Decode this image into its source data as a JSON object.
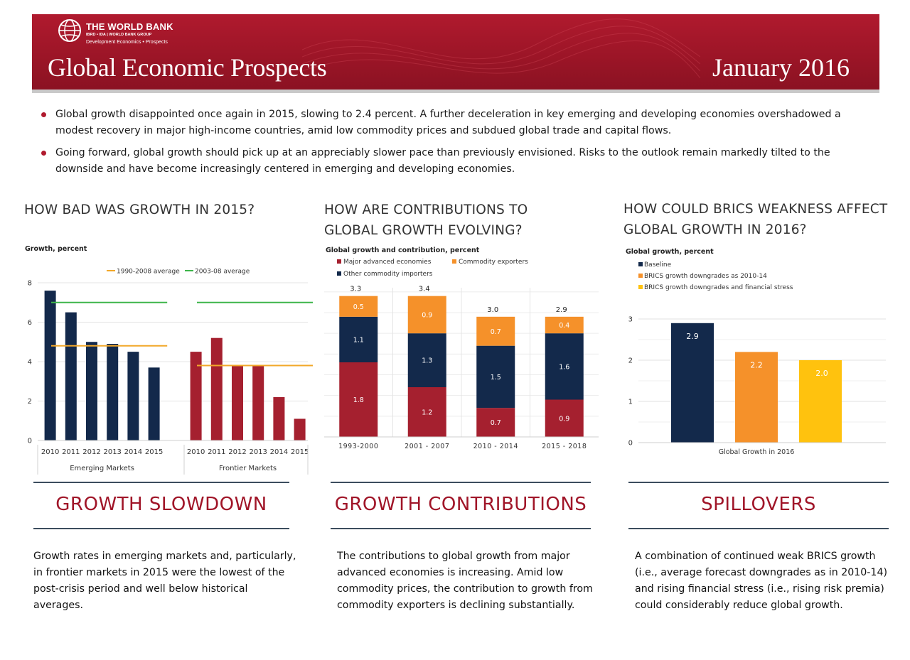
{
  "header": {
    "org_name": "THE WORLD BANK",
    "org_sub": "IBRD • IDA | WORLD BANK GROUP",
    "org_dept": "Development Economics • Prospects",
    "title": "Global Economic Prospects",
    "date": "January 2016"
  },
  "bullets": [
    "Global growth disappointed once again in 2015, slowing to 2.4 percent. A further deceleration in key emerging and developing economies overshadowed a modest recovery in major high-income countries, amid low commodity prices and subdued global trade and capital flows.",
    "Going forward, global growth should pick up at an appreciably slower pace than previously envisioned. Risks to the outlook remain markedly tilted to the downside and have become increasingly centered in emerging and developing economies."
  ],
  "sections": [
    {
      "question": "HOW BAD WAS GROWTH IN 2015?",
      "title": "GROWTH SLOWDOWN",
      "body": "Growth rates in emerging markets and, particularly, in frontier markets in 2015 were the lowest of the post-crisis period and well below historical averages."
    },
    {
      "question": "HOW ARE CONTRIBUTIONS TO GLOBAL GROWTH EVOLVING?",
      "title": "GROWTH CONTRIBUTIONS",
      "body": "The contributions to global growth from major advanced economies is increasing. Amid low commodity prices, the contribution to growth from commodity exporters is declining substantially."
    },
    {
      "question": "HOW COULD BRICS WEAKNESS AFFECT GLOBAL GROWTH IN 2016?",
      "title": "SPILLOVERS",
      "body": "A combination of continued weak BRICS growth (i.e., average forecast downgrades as in 2010-14) and rising financial stress (i.e., rising risk premia) could considerably reduce global growth."
    }
  ],
  "colors": {
    "brand_red": "#b01a2e",
    "navy": "#13294b",
    "crimson": "#a5202f",
    "orange": "#f5912a",
    "gold": "#ffc20e",
    "avg_1990": "#f2a82a",
    "avg_2003": "#3db54a"
  },
  "chart_data": [
    {
      "type": "bar",
      "ylabel": "Growth, percent",
      "ylim": [
        0,
        8
      ],
      "yticks": [
        0,
        2,
        4,
        6,
        8
      ],
      "grid": true,
      "legend_placement": "top",
      "groups": [
        {
          "name": "Emerging Markets",
          "categories": [
            "2010",
            "2011",
            "2012",
            "2013",
            "2014",
            "2015"
          ],
          "values": [
            7.6,
            6.5,
            5.0,
            4.9,
            4.5,
            3.7
          ],
          "color": "#13294b",
          "avg_1990_2008": 4.8,
          "avg_2003_08": 7.0
        },
        {
          "name": "Frontier Markets",
          "categories": [
            "2010",
            "2011",
            "2012",
            "2013",
            "2014",
            "2015"
          ],
          "values": [
            4.5,
            5.2,
            3.8,
            3.8,
            2.2,
            1.1
          ],
          "color": "#a5202f",
          "avg_1990_2008": 3.8,
          "avg_2003_08": 7.0
        }
      ],
      "legend": [
        "1990-2008 average",
        "2003-08 average"
      ]
    },
    {
      "type": "bar",
      "stacked": true,
      "title": "Global growth and contribution,  percent",
      "categories": [
        "1993-2000",
        "2001 - 2007",
        "2010 - 2014",
        "2015 - 2018"
      ],
      "totals": [
        "3.3",
        "3.4",
        "3.0",
        "2.9"
      ],
      "ylim": [
        0,
        3.6
      ],
      "grid": true,
      "legend_placement": "top",
      "series": [
        {
          "name": "Major advanced economies",
          "color": "#a5202f",
          "values": [
            1.8,
            1.2,
            0.7,
            0.9
          ]
        },
        {
          "name": "Other commodity importers",
          "color": "#13294b",
          "values": [
            1.1,
            1.3,
            1.5,
            1.6
          ]
        },
        {
          "name": "Commodity exporters",
          "color": "#f5912a",
          "values": [
            0.5,
            0.9,
            0.7,
            0.4
          ]
        }
      ]
    },
    {
      "type": "bar",
      "title": "Global growth, percent",
      "xlabel": "Global Growth in 2016",
      "ylim": [
        0,
        3
      ],
      "yticks": [
        0,
        1,
        2,
        3
      ],
      "grid": true,
      "legend_placement": "top",
      "series": [
        {
          "name": "Baseline",
          "color": "#13294b",
          "value": 2.9,
          "label": "2.9"
        },
        {
          "name": "BRICS growth downgrades as 2010-14",
          "color": "#f5912a",
          "value": 2.2,
          "label": "2.2"
        },
        {
          "name": "BRICS growth downgrades and financial stress",
          "color": "#ffc20e",
          "value": 2.0,
          "label": "2.0"
        }
      ]
    }
  ]
}
